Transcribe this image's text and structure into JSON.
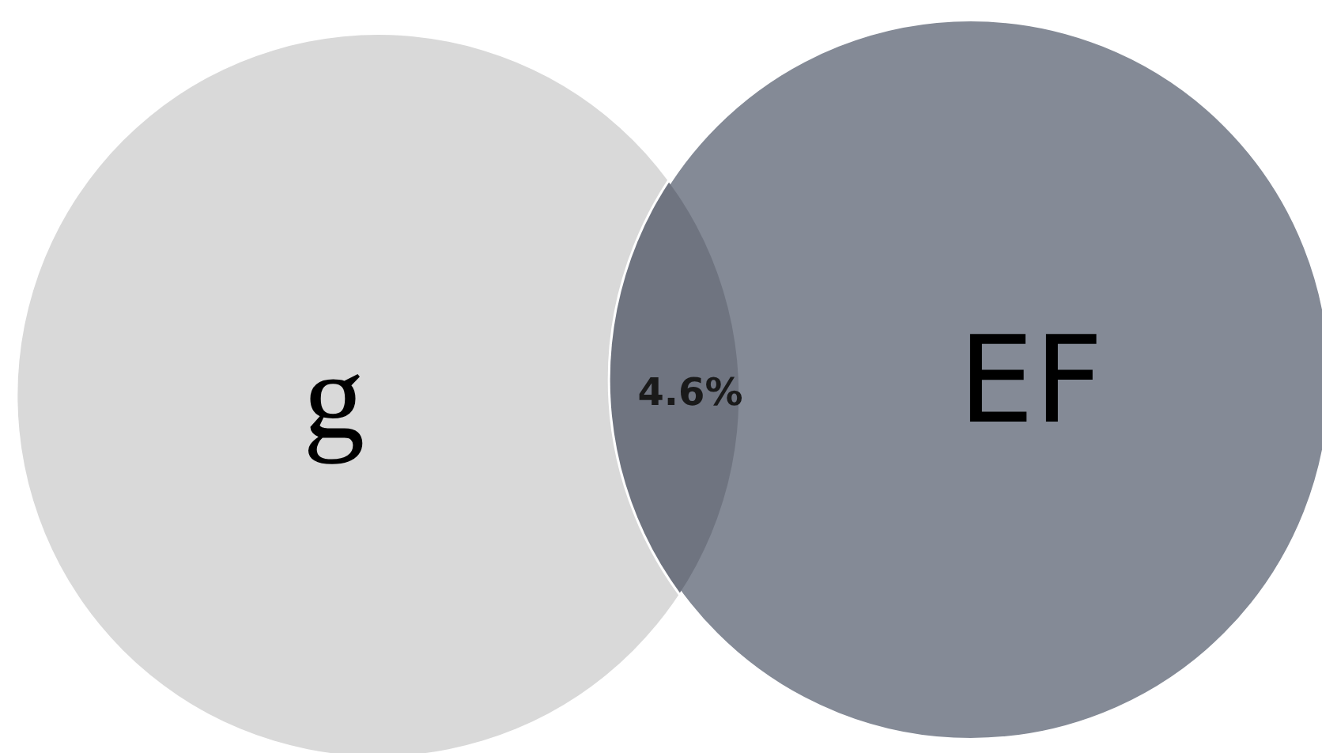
{
  "chart_data": {
    "type": "other",
    "categories": [
      "g",
      "EF",
      null
    ],
    "values": [
      null,
      null,
      4.6
    ],
    "colors": [
      "#d9d9d9",
      "#848a96",
      "#6f7480"
    ],
    "value_labels": [
      null,
      null,
      "4.6%"
    ]
  }
}
